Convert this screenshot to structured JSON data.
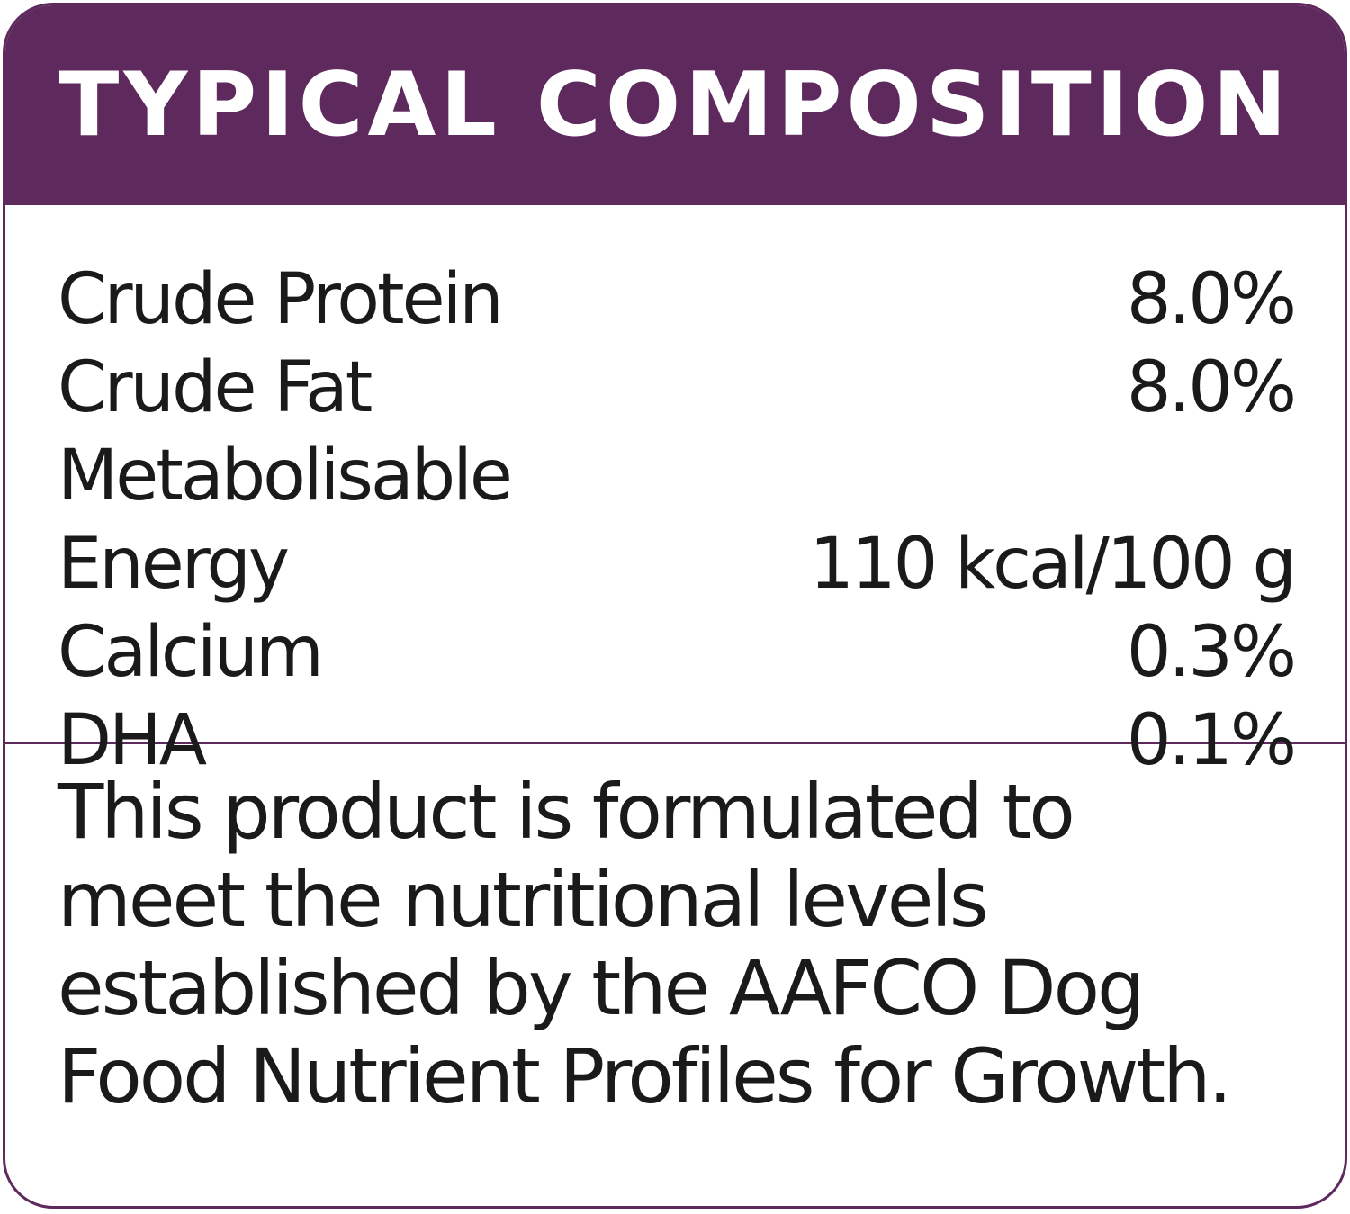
{
  "header": {
    "title": "TYPICAL COMPOSITION"
  },
  "table": {
    "rows": [
      {
        "label": "Crude Protein",
        "value": "8.0%"
      },
      {
        "label": "Crude Fat",
        "value": "8.0%"
      },
      {
        "label": "Metabolisable Energy",
        "value": "110 kcal/100 g"
      },
      {
        "label": "Calcium",
        "value": "0.3%"
      },
      {
        "label": "DHA",
        "value": "0.1%"
      }
    ]
  },
  "note": "This product is formulated to meet the nutritional levels established by the AAFCO Dog Food Nutrient Profiles for Growth."
}
